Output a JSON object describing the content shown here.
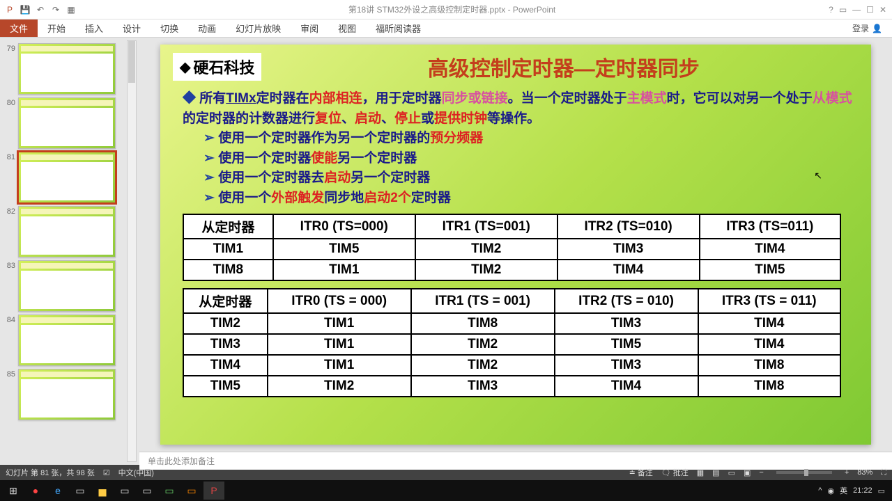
{
  "titlebar": {
    "title": "第18讲 STM32外设之高级控制定时器.pptx - PowerPoint",
    "help": "?",
    "login": "登录"
  },
  "ribbon": {
    "file": "文件",
    "tabs": [
      "开始",
      "插入",
      "设计",
      "切换",
      "动画",
      "幻灯片放映",
      "审阅",
      "视图",
      "福昕阅读器"
    ]
  },
  "thumbs": {
    "start": 79,
    "active": 81,
    "count": 7
  },
  "slide": {
    "logo": "硬石科技",
    "title": "高级控制定时器—定时器同步",
    "line1_a": "所有",
    "line1_b": "TIMx",
    "line1_c": "定时器在",
    "line1_d": "内部相连",
    "line1_e": "，用于定时器",
    "line1_f": "同步或链接",
    "line1_g": "。当一个定时器处于",
    "line1_h": "主模式",
    "line1_i": "时，它可以对另一个处于",
    "line1_j": "从模式",
    "line1_k": "的定时器的计数器进行",
    "line1_l": "复位",
    "line1_m": "、",
    "line1_n": "启动",
    "line1_o": "、",
    "line1_p": "停止",
    "line1_q": "或",
    "line1_r": "提供时钟",
    "line1_s": "等操作。",
    "sub1_a": "使用一个定时器作为另一个定时器的",
    "sub1_b": "预分频器",
    "sub2_a": "使用一个定时器",
    "sub2_b": "使能",
    "sub2_c": "另一个定时器",
    "sub3_a": "使用一个定时器去",
    "sub3_b": "启动",
    "sub3_c": "另一个定时器",
    "sub4_a": "使用一个",
    "sub4_b": "外部触发",
    "sub4_c": "同步地",
    "sub4_d": "启动2个",
    "sub4_e": "定时器",
    "table1": {
      "headers": [
        "从定时器",
        "ITR0 (TS=000)",
        "ITR1 (TS=001)",
        "ITR2 (TS=010)",
        "ITR3 (TS=011)"
      ],
      "rows": [
        [
          "TIM1",
          "TIM5",
          "TIM2",
          "TIM3",
          "TIM4"
        ],
        [
          "TIM8",
          "TIM1",
          "TIM2",
          "TIM4",
          "TIM5"
        ]
      ]
    },
    "table2": {
      "headers": [
        "从定时器",
        "ITR0 (TS = 000)",
        "ITR1 (TS = 001)",
        "ITR2 (TS = 010)",
        "ITR3 (TS = 011)"
      ],
      "rows": [
        [
          "TIM2",
          "TIM1",
          "TIM8",
          "TIM3",
          "TIM4"
        ],
        [
          "TIM3",
          "TIM1",
          "TIM2",
          "TIM5",
          "TIM4"
        ],
        [
          "TIM4",
          "TIM1",
          "TIM2",
          "TIM3",
          "TIM8"
        ],
        [
          "TIM5",
          "TIM2",
          "TIM3",
          "TIM4",
          "TIM8"
        ]
      ]
    }
  },
  "notes": {
    "placeholder": "单击此处添加备注"
  },
  "status": {
    "slide_pos": "幻灯片 第 81 张，共 98 张",
    "lang": "中文(中国)",
    "notes_btn": "备注",
    "comments_btn": "批注",
    "zoom": "83%"
  },
  "tray": {
    "ime": "英",
    "time": "21:22"
  }
}
